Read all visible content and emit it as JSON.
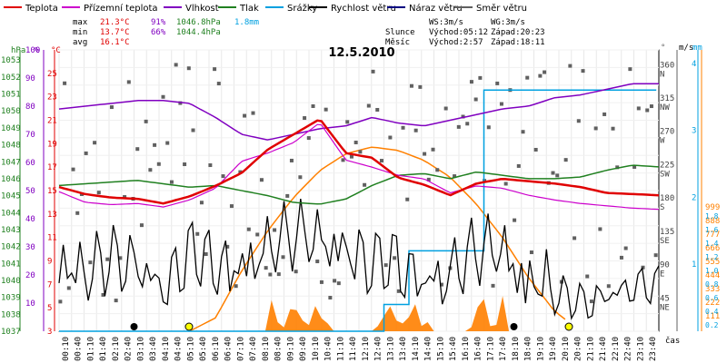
{
  "chart_data": {
    "type": "line",
    "title": "12.5.2010",
    "legend": [
      {
        "label": "Teplota",
        "color": "#e00000"
      },
      {
        "label": "Přízemní teplota",
        "color": "#cc00cc"
      },
      {
        "label": "Vlhkost",
        "color": "#8000c0"
      },
      {
        "label": "Tlak",
        "color": "#208020"
      },
      {
        "label": "Srážky",
        "color": "#00a0e0"
      },
      {
        "label": "Rychlost větru",
        "color": "#000000"
      },
      {
        "label": "Náraz větru",
        "color": "#000080"
      },
      {
        "label": "Směr větru",
        "color": "#606060"
      }
    ],
    "stats": {
      "max_label": "max",
      "max_temp": "21.3°C",
      "max_hum": "91%",
      "max_press": "1046.8hPa",
      "max_rain": "1.8mm",
      "min_label": "min",
      "min_temp": "13.7°C",
      "min_hum": "66%",
      "min_press": "1044.4hPa",
      "avg_label": "avg",
      "avg_temp": "16.1°C",
      "ws": "WS:3m/s",
      "wg": "WG:3m/s",
      "sun_label": "Slunce",
      "sunrise": "Východ:05:12",
      "sunset": "Západ:20:23",
      "moon_label": "Měsíc",
      "moonrise": "Východ:2:57",
      "moonset": "Západ:18:11"
    },
    "axes": {
      "hpa_title": "hPa",
      "pct_title": "%",
      "c_title": "°C",
      "deg_title": "°",
      "ms_title": "m/s",
      "mm_title": "mm",
      "xlabel": "čas",
      "hpa_ticks": [
        "1053",
        "1052",
        "1051",
        "1050",
        "1049",
        "1048",
        "1047",
        "1046",
        "1045",
        "1044",
        "1043",
        "1042",
        "1041",
        "1040",
        "1039",
        "1038",
        "1037"
      ],
      "pct_ticks": [
        "100",
        "90",
        "80",
        "70",
        "60",
        "50",
        "40",
        "30",
        "20",
        "10"
      ],
      "c_ticks": [
        "25",
        "23",
        "21",
        "19",
        "17",
        "15",
        "13",
        "11",
        "9",
        "7",
        "5",
        "3"
      ],
      "deg_ticks": [
        {
          "v": "360",
          "d": "N"
        },
        {
          "v": "315",
          "d": "NW"
        },
        {
          "v": "270",
          "d": "W"
        },
        {
          "v": "225",
          "d": "SW"
        },
        {
          "v": "180",
          "d": "S"
        },
        {
          "v": "135",
          "d": "SE"
        },
        {
          "v": "90",
          "d": "E"
        },
        {
          "v": "45",
          "d": "NE"
        }
      ],
      "ms_ticks": [
        "4",
        "3",
        "2",
        "1"
      ],
      "mm_ticks": [
        "999",
        "888",
        "777",
        "666",
        "555",
        "444",
        "333",
        "222",
        "111"
      ],
      "mm_small": [
        "1.8",
        "1.6",
        "1.4",
        "1.2",
        "1.0",
        "0.8",
        "0.6",
        "0.4",
        "0.2"
      ],
      "time_ticks": [
        "00:10",
        "00:40",
        "01:10",
        "01:40",
        "02:10",
        "02:40",
        "03:10",
        "03:40",
        "04:10",
        "04:40",
        "05:10",
        "05:40",
        "06:10",
        "06:40",
        "07:10",
        "07:40",
        "08:10",
        "08:40",
        "09:10",
        "09:40",
        "10:10",
        "10:40",
        "11:10",
        "11:40",
        "12:10",
        "12:40",
        "13:10",
        "13:40",
        "14:10",
        "14:40",
        "15:10",
        "15:40",
        "16:10",
        "16:40",
        "17:10",
        "17:40",
        "18:10",
        "18:40",
        "19:10",
        "19:40",
        "20:10",
        "20:40",
        "21:10",
        "21:40",
        "22:10",
        "22:40",
        "23:10",
        "23:40"
      ],
      "temp_range": [
        3,
        27
      ],
      "hum_range": [
        0,
        100
      ],
      "press_range": [
        1037,
        1053.6
      ],
      "wind_range": [
        0,
        4.2
      ],
      "rain_range": [
        0,
        1.8
      ]
    },
    "series": {
      "hours": [
        0,
        1,
        2,
        3,
        4,
        5,
        6,
        7,
        8,
        9,
        10,
        11,
        12,
        13,
        14,
        15,
        16,
        17,
        18,
        19,
        20,
        21,
        22,
        23.9
      ],
      "temperature": [
        15.3,
        14.7,
        14.4,
        14.3,
        13.9,
        14.5,
        15.4,
        16.5,
        18.5,
        19.8,
        21.1,
        18.2,
        17.8,
        16.1,
        15.5,
        14.6,
        15.6,
        16.0,
        15.8,
        15.6,
        15.3,
        14.8,
        14.7,
        14.6
      ],
      "ground_temperature": [
        14.9,
        14.0,
        13.8,
        13.9,
        13.6,
        14.2,
        15.2,
        17.5,
        18.2,
        19.1,
        20.8,
        17.6,
        17.0,
        16.3,
        16.0,
        14.8,
        15.4,
        15.2,
        14.6,
        14.2,
        13.9,
        13.7,
        13.5,
        13.4
      ],
      "humidity": [
        79,
        80,
        81,
        82,
        82,
        81,
        76,
        70,
        68,
        70,
        72,
        73,
        76,
        74,
        73,
        75,
        77,
        79,
        80,
        83,
        84,
        86,
        88,
        88
      ],
      "pressure": [
        1045.6,
        1045.7,
        1045.8,
        1045.9,
        1045.7,
        1045.5,
        1045.6,
        1045.3,
        1045.0,
        1044.6,
        1044.5,
        1044.8,
        1045.6,
        1046.2,
        1046.3,
        1046.0,
        1046.4,
        1046.2,
        1046.0,
        1046.0,
        1046.1,
        1046.5,
        1046.8,
        1046.7
      ],
      "wind_speed": [
        1.2,
        0.6,
        0.9,
        1.0,
        0.4,
        1.1,
        0.8,
        1.0,
        1.3,
        1.5,
        1.6,
        1.4,
        0.8,
        0.9,
        0.6,
        0.7,
        1.1,
        1.3,
        0.6,
        0.4,
        0.2,
        0.5,
        0.7,
        0.6
      ],
      "sun_elevation": [
        0,
        0,
        0,
        0,
        0,
        0,
        0.2,
        0.9,
        1.5,
        2.0,
        2.4,
        2.65,
        2.75,
        2.7,
        2.55,
        2.3,
        1.9,
        1.4,
        0.8,
        0.3,
        0,
        0,
        0,
        0
      ],
      "rain_cumulative": [
        0,
        0,
        0,
        0,
        0,
        0,
        0,
        0,
        0,
        0,
        0,
        0,
        0,
        0.2,
        0.6,
        0.6,
        0.6,
        1.8,
        1.8,
        1.8,
        1.8,
        1.8,
        1.8,
        1.8
      ]
    }
  }
}
